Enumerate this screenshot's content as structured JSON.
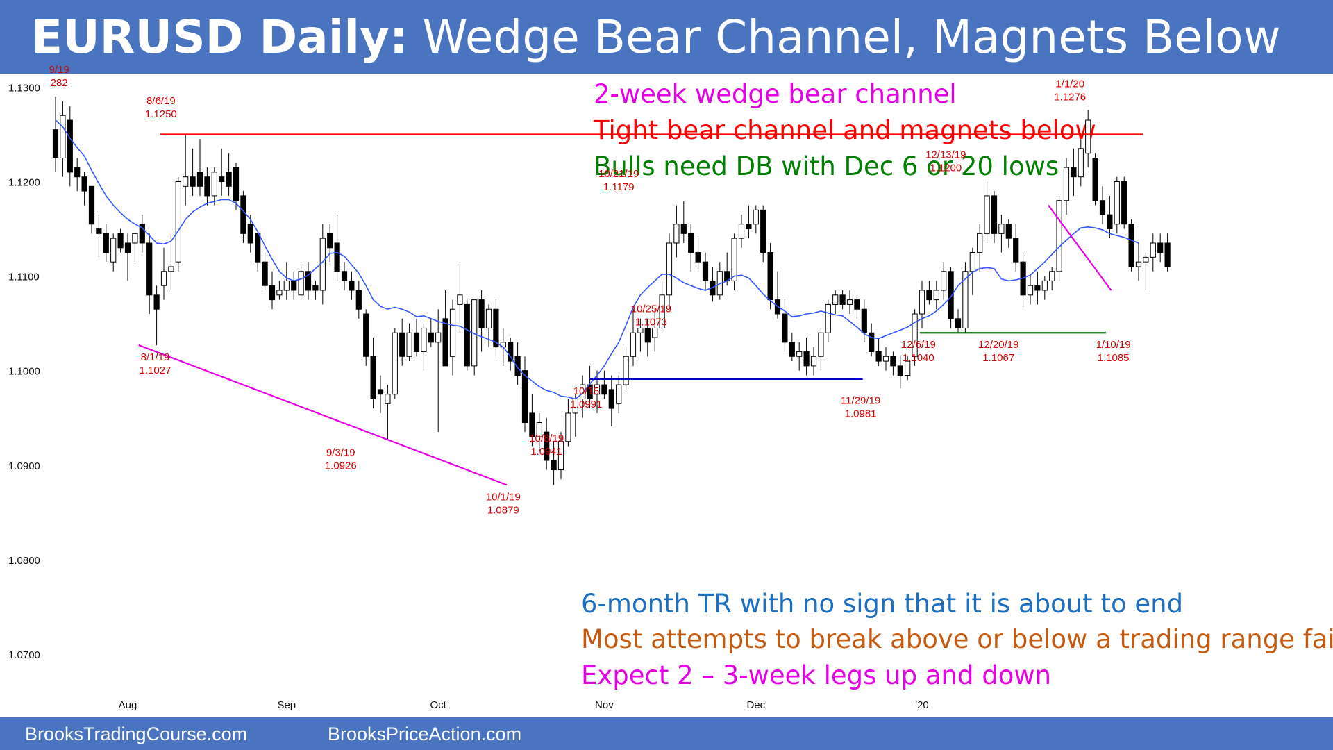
{
  "header": {
    "title_bold": "EURUSD Daily:",
    "title_rest": "Wedge Bear Channel, Magnets Below"
  },
  "footer": {
    "link1": "BrooksTradingCourse.com",
    "link2": "BrooksPriceAction.com"
  },
  "colors": {
    "header_bg": "#4a74bf",
    "magenta": "#e600e6",
    "red": "#ff0000",
    "green": "#008000",
    "blue": "#1f6fc0",
    "orange": "#c55a11",
    "navy": "#0000cc",
    "ma_line": "#3355ff",
    "label_red": "#d90000"
  },
  "notes_top": [
    {
      "text": "2-week wedge bear channel",
      "color": "#e600e6"
    },
    {
      "text": "Tight bear channel and magnets below",
      "color": "#ff0000"
    },
    {
      "text": "Bulls need DB with Dec 6 or 20 lows",
      "color": "#008000"
    }
  ],
  "notes_bottom": [
    {
      "text": "6-month TR with no sign that it is about to end",
      "color": "#1f6fc0"
    },
    {
      "text": "Most attempts to break above or below a trading range fail",
      "color": "#c55a11"
    },
    {
      "text": "Expect 2 – 3-week legs up and down",
      "color": "#e600e6"
    }
  ],
  "chart_data": {
    "type": "candlestick",
    "title": "",
    "ylim": [
      1.065,
      1.1315
    ],
    "y_ticks": [
      {
        "value": 1.13,
        "label": "1.1300"
      },
      {
        "value": 1.12,
        "label": "1.1200"
      },
      {
        "value": 1.11,
        "label": "1.1100"
      },
      {
        "value": 1.1,
        "label": "1.1000"
      },
      {
        "value": 1.09,
        "label": "1.0900"
      },
      {
        "value": 1.08,
        "label": "1.0800"
      },
      {
        "value": 1.07,
        "label": "1.0700"
      }
    ],
    "x_ticks": [
      {
        "bar": 10,
        "label": "Aug"
      },
      {
        "bar": 32,
        "label": "Sep"
      },
      {
        "bar": 53,
        "label": "Oct"
      },
      {
        "bar": 76,
        "label": "Nov"
      },
      {
        "bar": 97,
        "label": "Dec"
      },
      {
        "bar": 120,
        "label": "'20"
      }
    ],
    "ohlc": [
      [
        1.1255,
        1.129,
        1.121,
        1.1225
      ],
      [
        1.1225,
        1.1285,
        1.1205,
        1.127
      ],
      [
        1.1265,
        1.128,
        1.1195,
        1.121
      ],
      [
        1.1215,
        1.1225,
        1.119,
        1.1205
      ],
      [
        1.1205,
        1.121,
        1.1175,
        1.119
      ],
      [
        1.1195,
        1.1195,
        1.1145,
        1.1155
      ],
      [
        1.115,
        1.1165,
        1.112,
        1.1145
      ],
      [
        1.1145,
        1.1155,
        1.1115,
        1.1125
      ],
      [
        1.1115,
        1.1145,
        1.1105,
        1.114
      ],
      [
        1.1145,
        1.115,
        1.1125,
        1.113
      ],
      [
        1.1135,
        1.1145,
        1.1095,
        1.1125
      ],
      [
        1.1135,
        1.1145,
        1.1115,
        1.1145
      ],
      [
        1.1155,
        1.1165,
        1.1125,
        1.1135
      ],
      [
        1.1135,
        1.1145,
        1.106,
        1.108
      ],
      [
        1.108,
        1.109,
        1.1027,
        1.1065
      ],
      [
        1.109,
        1.113,
        1.1075,
        1.1105
      ],
      [
        1.1105,
        1.1145,
        1.1085,
        1.111
      ],
      [
        1.1115,
        1.1205,
        1.1105,
        1.12
      ],
      [
        1.1195,
        1.125,
        1.1175,
        1.1205
      ],
      [
        1.1205,
        1.1235,
        1.1185,
        1.1195
      ],
      [
        1.121,
        1.1245,
        1.1185,
        1.1195
      ],
      [
        1.1205,
        1.1215,
        1.1175,
        1.1185
      ],
      [
        1.1185,
        1.1215,
        1.1175,
        1.121
      ],
      [
        1.1205,
        1.1235,
        1.1185,
        1.12
      ],
      [
        1.121,
        1.123,
        1.1185,
        1.1195
      ],
      [
        1.1215,
        1.122,
        1.117,
        1.118
      ],
      [
        1.1185,
        1.119,
        1.1135,
        1.1145
      ],
      [
        1.1155,
        1.1165,
        1.1125,
        1.1135
      ],
      [
        1.1145,
        1.1145,
        1.1105,
        1.1115
      ],
      [
        1.1115,
        1.1125,
        1.1085,
        1.109
      ],
      [
        1.109,
        1.1105,
        1.1065,
        1.1075
      ],
      [
        1.108,
        1.1095,
        1.1075,
        1.1085
      ],
      [
        1.1085,
        1.1115,
        1.1075,
        1.1095
      ],
      [
        1.1095,
        1.1105,
        1.1075,
        1.1085
      ],
      [
        1.108,
        1.1115,
        1.1075,
        1.1105
      ],
      [
        1.1105,
        1.1115,
        1.1075,
        1.1085
      ],
      [
        1.109,
        1.1095,
        1.1075,
        1.1085
      ],
      [
        1.1085,
        1.1155,
        1.107,
        1.114
      ],
      [
        1.1145,
        1.1155,
        1.1115,
        1.113
      ],
      [
        1.1135,
        1.1165,
        1.1095,
        1.1105
      ],
      [
        1.1105,
        1.1115,
        1.1085,
        1.1095
      ],
      [
        1.1095,
        1.1105,
        1.1075,
        1.1085
      ],
      [
        1.1085,
        1.1095,
        1.1055,
        1.1065
      ],
      [
        1.106,
        1.1065,
        1.1005,
        1.1015
      ],
      [
        1.1015,
        1.1035,
        1.096,
        1.097
      ],
      [
        1.098,
        1.0995,
        1.0955,
        1.0975
      ],
      [
        1.0965,
        1.0985,
        1.0926,
        1.0975
      ],
      [
        1.0975,
        1.1045,
        1.097,
        1.104
      ],
      [
        1.104,
        1.1055,
        1.1005,
        1.1015
      ],
      [
        1.1015,
        1.105,
        1.101,
        1.104
      ],
      [
        1.104,
        1.1055,
        1.1015,
        1.102
      ],
      [
        1.102,
        1.105,
        1.1,
        1.1045
      ],
      [
        1.104,
        1.1055,
        1.1025,
        1.103
      ],
      [
        1.103,
        1.1065,
        1.0935,
        1.104
      ],
      [
        1.1055,
        1.1085,
        1.101,
        1.1005
      ],
      [
        1.1015,
        1.1075,
        1.0995,
        1.1065
      ],
      [
        1.107,
        1.1115,
        1.104,
        1.108
      ],
      [
        1.107,
        1.1075,
        1.1,
        1.1005
      ],
      [
        1.1005,
        1.1075,
        1.0995,
        1.1075
      ],
      [
        1.1075,
        1.1085,
        1.102,
        1.1045
      ],
      [
        1.1045,
        1.107,
        1.1025,
        1.1065
      ],
      [
        1.1065,
        1.1075,
        1.1015,
        1.1025
      ],
      [
        1.1025,
        1.1045,
        1.1005,
        1.103
      ],
      [
        1.103,
        1.1035,
        1.1,
        1.101
      ],
      [
        1.1015,
        1.103,
        1.0985,
        1.0995
      ],
      [
        1.1,
        1.1015,
        1.0935,
        1.0945
      ],
      [
        1.0955,
        1.0975,
        1.092,
        1.093
      ],
      [
        1.093,
        1.0955,
        1.0915,
        1.0945
      ],
      [
        1.0935,
        1.095,
        1.0895,
        1.0905
      ],
      [
        1.0905,
        1.0925,
        1.0879,
        1.0895
      ],
      [
        1.0895,
        1.0935,
        1.0885,
        1.0925
      ],
      [
        1.0925,
        1.097,
        1.092,
        1.0955
      ],
      [
        1.0955,
        1.0975,
        1.093,
        1.097
      ],
      [
        1.097,
        1.0995,
        1.095,
        1.0985
      ],
      [
        1.0985,
        1.1005,
        1.096,
        1.097
      ],
      [
        1.0975,
        1.1,
        1.0955,
        1.0985
      ],
      [
        1.0985,
        1.1,
        1.097,
        1.0975
      ],
      [
        1.098,
        1.0995,
        1.0941,
        1.096
      ],
      [
        1.0965,
        1.0995,
        1.0955,
        1.0985
      ],
      [
        1.0985,
        1.1025,
        1.098,
        1.1015
      ],
      [
        1.1015,
        1.1065,
        1.1005,
        1.104
      ],
      [
        1.104,
        1.1055,
        1.102,
        1.1045
      ],
      [
        1.1045,
        1.1055,
        1.1015,
        1.103
      ],
      [
        1.1035,
        1.1065,
        1.102,
        1.1045
      ],
      [
        1.1045,
        1.1095,
        1.104,
        1.108
      ],
      [
        1.108,
        1.1145,
        1.1065,
        1.1135
      ],
      [
        1.1135,
        1.1175,
        1.112,
        1.1155
      ],
      [
        1.1155,
        1.1179,
        1.1135,
        1.1145
      ],
      [
        1.1145,
        1.1155,
        1.1105,
        1.1125
      ],
      [
        1.1125,
        1.114,
        1.1105,
        1.1115
      ],
      [
        1.1115,
        1.1125,
        1.1085,
        1.1095
      ],
      [
        1.1095,
        1.111,
        1.1073,
        1.108
      ],
      [
        1.108,
        1.1115,
        1.1075,
        1.1105
      ],
      [
        1.1105,
        1.1125,
        1.109,
        1.1095
      ],
      [
        1.1095,
        1.1145,
        1.1085,
        1.114
      ],
      [
        1.114,
        1.1165,
        1.113,
        1.1155
      ],
      [
        1.1155,
        1.1175,
        1.114,
        1.115
      ],
      [
        1.1155,
        1.1175,
        1.1145,
        1.117
      ],
      [
        1.117,
        1.1175,
        1.1115,
        1.1125
      ],
      [
        1.1125,
        1.1135,
        1.1065,
        1.1075
      ],
      [
        1.1075,
        1.1105,
        1.1055,
        1.106
      ],
      [
        1.106,
        1.1075,
        1.102,
        1.103
      ],
      [
        1.103,
        1.104,
        1.101,
        1.1015
      ],
      [
        1.1015,
        1.103,
        1.1,
        1.102
      ],
      [
        1.102,
        1.1035,
        1.0995,
        1.1005
      ],
      [
        1.1005,
        1.1025,
        1.0995,
        1.1015
      ],
      [
        1.1015,
        1.1045,
        1.1,
        1.104
      ],
      [
        1.104,
        1.1075,
        1.103,
        1.107
      ],
      [
        1.107,
        1.1085,
        1.106,
        1.108
      ],
      [
        1.108,
        1.1085,
        1.1065,
        1.107
      ],
      [
        1.107,
        1.1085,
        1.106,
        1.1075
      ],
      [
        1.1075,
        1.108,
        1.1055,
        1.1065
      ],
      [
        1.1065,
        1.1075,
        1.103,
        1.104
      ],
      [
        1.104,
        1.105,
        1.1015,
        1.102
      ],
      [
        1.102,
        1.1035,
        1.1005,
        1.101
      ],
      [
        1.101,
        1.1025,
        1.1,
        1.1015
      ],
      [
        1.1015,
        1.102,
        1.0995,
        1.1005
      ],
      [
        1.1005,
        1.1015,
        1.0981,
        1.0995
      ],
      [
        1.0995,
        1.1015,
        1.099,
        1.101
      ],
      [
        1.1015,
        1.1065,
        1.1005,
        1.106
      ],
      [
        1.106,
        1.1095,
        1.1045,
        1.1085
      ],
      [
        1.1085,
        1.1095,
        1.107,
        1.1075
      ],
      [
        1.1075,
        1.1095,
        1.1065,
        1.1085
      ],
      [
        1.1085,
        1.1115,
        1.1075,
        1.1105
      ],
      [
        1.1105,
        1.111,
        1.1045,
        1.1055
      ],
      [
        1.1055,
        1.1065,
        1.104,
        1.1045
      ],
      [
        1.1045,
        1.1115,
        1.104,
        1.1105
      ],
      [
        1.1105,
        1.113,
        1.108,
        1.1125
      ],
      [
        1.1125,
        1.1155,
        1.1105,
        1.1145
      ],
      [
        1.1145,
        1.12,
        1.1135,
        1.1185
      ],
      [
        1.1185,
        1.119,
        1.1135,
        1.1145
      ],
      [
        1.1145,
        1.1165,
        1.1125,
        1.1155
      ],
      [
        1.1155,
        1.116,
        1.113,
        1.114
      ],
      [
        1.114,
        1.1155,
        1.1105,
        1.1115
      ],
      [
        1.1115,
        1.1125,
        1.1067,
        1.108
      ],
      [
        1.108,
        1.11,
        1.107,
        1.109
      ],
      [
        1.109,
        1.1105,
        1.107,
        1.1085
      ],
      [
        1.1085,
        1.11,
        1.1075,
        1.1095
      ],
      [
        1.1095,
        1.111,
        1.1085,
        1.1105
      ],
      [
        1.1105,
        1.1185,
        1.1095,
        1.118
      ],
      [
        1.118,
        1.1225,
        1.1165,
        1.1215
      ],
      [
        1.1215,
        1.1235,
        1.1185,
        1.1205
      ],
      [
        1.1205,
        1.1245,
        1.1195,
        1.1235
      ],
      [
        1.123,
        1.1276,
        1.1215,
        1.1265
      ],
      [
        1.1225,
        1.123,
        1.1175,
        1.118
      ],
      [
        1.118,
        1.1195,
        1.1155,
        1.1165
      ],
      [
        1.1165,
        1.1185,
        1.114,
        1.115
      ],
      [
        1.1155,
        1.1205,
        1.1145,
        1.12
      ],
      [
        1.12,
        1.1205,
        1.115,
        1.1155
      ],
      [
        1.1155,
        1.116,
        1.1105,
        1.111
      ],
      [
        1.111,
        1.1135,
        1.1095,
        1.1115
      ],
      [
        1.1115,
        1.1125,
        1.1085,
        1.112
      ],
      [
        1.112,
        1.1145,
        1.1105,
        1.1135
      ],
      [
        1.1135,
        1.1145,
        1.1115,
        1.1125
      ],
      [
        1.1135,
        1.1145,
        1.1105,
        1.111
      ]
    ],
    "moving_average": [
      1.1265,
      1.1258,
      1.1246,
      1.1236,
      1.1227,
      1.1212,
      1.1198,
      1.1185,
      1.1175,
      1.1167,
      1.116,
      1.1155,
      1.1151,
      1.1143,
      1.1135,
      1.1134,
      1.1137,
      1.1148,
      1.116,
      1.1168,
      1.1173,
      1.1177,
      1.1179,
      1.1181,
      1.1181,
      1.1177,
      1.1169,
      1.116,
      1.1147,
      1.1132,
      1.1118,
      1.1105,
      1.1098,
      1.1095,
      1.1097,
      1.1101,
      1.1108,
      1.1115,
      1.1124,
      1.1125,
      1.1121,
      1.1112,
      1.1103,
      1.109,
      1.1075,
      1.1068,
      1.1065,
      1.1067,
      1.1065,
      1.1062,
      1.1057,
      1.1058,
      1.1055,
      1.1052,
      1.105,
      1.1048,
      1.1047,
      1.1043,
      1.1039,
      1.1036,
      1.1033,
      1.103,
      1.1025,
      1.1015,
      1.1003,
      1.0995,
      1.0989,
      1.0983,
      1.0979,
      1.0977,
      1.0973,
      1.0972,
      1.097,
      1.0976,
      1.0986,
      1.0995,
      1.1005,
      1.1018,
      1.103,
      1.1048,
      1.1067,
      1.108,
      1.1088,
      1.1095,
      1.1102,
      1.1102,
      1.1098,
      1.1093,
      1.109,
      1.1087,
      1.1085,
      1.1088,
      1.1092,
      1.1095,
      1.11,
      1.1101,
      1.1098,
      1.109,
      1.1081,
      1.1074,
      1.1068,
      1.1063,
      1.1057,
      1.1058,
      1.106,
      1.1061,
      1.1063,
      1.1061,
      1.1059,
      1.1058,
      1.1052,
      1.1046,
      1.1039,
      1.1035,
      1.1034,
      1.1037,
      1.104,
      1.1043,
      1.1046,
      1.1051,
      1.1055,
      1.1058,
      1.1063,
      1.107,
      1.1078,
      1.109,
      1.1097,
      1.1104,
      1.1108,
      1.1109,
      1.1108,
      1.1097,
      1.1095,
      1.1096,
      1.1098,
      1.1101,
      1.1108,
      1.1115,
      1.1123,
      1.1131,
      1.1138,
      1.1145,
      1.1151,
      1.1152,
      1.1151,
      1.1149,
      1.1145,
      1.1143,
      1.1141,
      1.1138,
      1.1135
    ],
    "lines": [
      {
        "name": "resistance",
        "color": "#ff0000",
        "from": [
          14.5,
          1.125
        ],
        "to": [
          150.6,
          1.125
        ]
      },
      {
        "name": "support-oct-dec",
        "color": "#0000cc",
        "from": [
          74,
          1.0991
        ],
        "to": [
          111.8,
          1.0991
        ]
      },
      {
        "name": "support-dec",
        "color": "#008000",
        "from": [
          119.7,
          1.104
        ],
        "to": [
          145.5,
          1.104
        ]
      },
      {
        "name": "wedge-bottom",
        "color": "#e600e6",
        "from": [
          11.5,
          1.1027
        ],
        "to": [
          62.5,
          1.0879
        ]
      },
      {
        "name": "wedge-bear-channel",
        "color": "#e600e6",
        "from": [
          137.5,
          1.1175
        ],
        "to": [
          146.2,
          1.1085
        ]
      }
    ],
    "annotations": [
      {
        "bar": 0.5,
        "price": 1.1295,
        "line1": "9/19",
        "line2": "282",
        "pos": "above"
      },
      {
        "bar": 14.6,
        "price": 1.1262,
        "line1": "8/6/19",
        "line2": "1.1250",
        "pos": "above"
      },
      {
        "bar": 13.8,
        "price": 1.1027,
        "line1": "8/1/19",
        "line2": "1.1027",
        "pos": "below"
      },
      {
        "bar": 39.5,
        "price": 1.0926,
        "line1": "9/3/19",
        "line2": "1.0926",
        "pos": "below"
      },
      {
        "bar": 62,
        "price": 1.0879,
        "line1": "10/1/19",
        "line2": "1.0879",
        "pos": "below"
      },
      {
        "bar": 68,
        "price": 1.0941,
        "line1": "10/8/19",
        "line2": "1.0941",
        "pos": "below"
      },
      {
        "bar": 73.5,
        "price": 1.0991,
        "line1": "10/15",
        "line2": "1.0991",
        "pos": "below"
      },
      {
        "bar": 78,
        "price": 1.1185,
        "line1": "10/21/19",
        "line2": "1.1179",
        "pos": "above"
      },
      {
        "bar": 82.5,
        "price": 1.1078,
        "line1": "10/25/19",
        "line2": "1.1073",
        "pos": "below"
      },
      {
        "bar": 111.5,
        "price": 1.0981,
        "line1": "11/29/19",
        "line2": "1.0981",
        "pos": "below"
      },
      {
        "bar": 119.5,
        "price": 1.104,
        "line1": "12/6/19",
        "line2": "1.1040",
        "pos": "below"
      },
      {
        "bar": 123.3,
        "price": 1.1205,
        "line1": "12/13/19",
        "line2": "1.1200",
        "pos": "above"
      },
      {
        "bar": 130.6,
        "price": 1.104,
        "line1": "12/20/19",
        "line2": "1.1067",
        "pos": "below"
      },
      {
        "bar": 140.5,
        "price": 1.128,
        "line1": "1/1/20",
        "line2": "1.1276",
        "pos": "above"
      },
      {
        "bar": 146.5,
        "price": 1.104,
        "line1": "1/10/19",
        "line2": "1.1085",
        "pos": "below"
      }
    ]
  }
}
